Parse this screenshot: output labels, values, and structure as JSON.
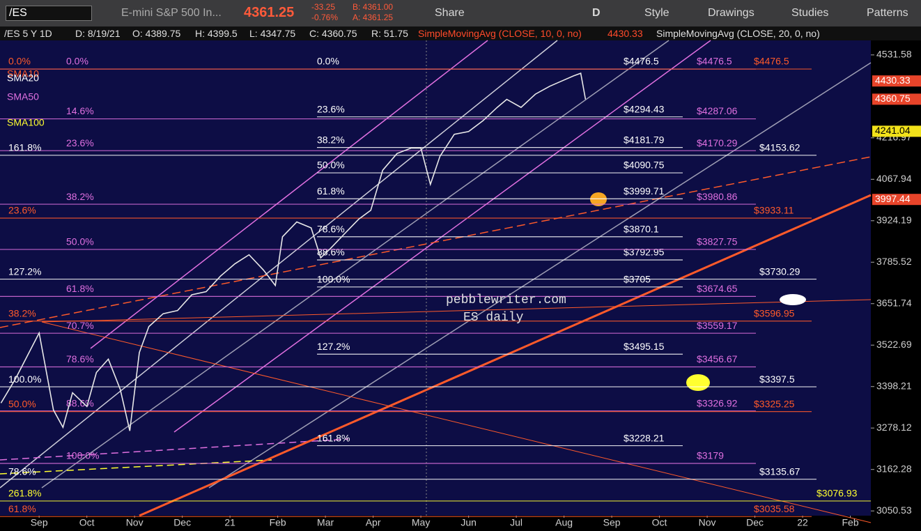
{
  "toolbar": {
    "symbol": "/ES",
    "description": "E-mini S&P 500 In...",
    "last": "4361.25",
    "change": "-33.25",
    "change_pct": "-0.76%",
    "bid": "B: 4361.00",
    "ask": "A: 4361.25",
    "share": "Share",
    "period": "D",
    "style": "Style",
    "drawings": "Drawings",
    "studies": "Studies",
    "patterns": "Patterns"
  },
  "info_bar": {
    "symbol": "/ES 5 Y 1D",
    "date": "D: 8/19/21",
    "open": "O: 4389.75",
    "high": "H: 4399.5",
    "low": "L: 4347.75",
    "close": "C: 4360.75",
    "range": "R: 51.75",
    "study1": "SimpleMovingAvg (CLOSE, 10, 0, no)",
    "study1_value": "4430.33",
    "study2": "SimpleMovingAvg (CLOSE, 20, 0, no)"
  },
  "chart_data": {
    "type": "line",
    "yscale": "log",
    "ylim": [
      3038,
      4589
    ],
    "yticks": [
      4531.58,
      4216.97,
      4067.94,
      3924.19,
      3785.52,
      3651.74,
      3522.69,
      3398.21,
      3278.12,
      3162.28,
      3050.53
    ],
    "xlim": [
      -0.82,
      17.43
    ],
    "xticks": [
      {
        "value": 0,
        "label": "Sep"
      },
      {
        "value": 1,
        "label": "Oct"
      },
      {
        "value": 2,
        "label": "Nov"
      },
      {
        "value": 3,
        "label": "Dec"
      },
      {
        "value": 4,
        "label": "21"
      },
      {
        "value": 5,
        "label": "Feb"
      },
      {
        "value": 6,
        "label": "Mar"
      },
      {
        "value": 7,
        "label": "Apr"
      },
      {
        "value": 8,
        "label": "May"
      },
      {
        "value": 9,
        "label": "Jun"
      },
      {
        "value": 10,
        "label": "Jul"
      },
      {
        "value": 11,
        "label": "Aug"
      },
      {
        "value": 12,
        "label": "Sep"
      },
      {
        "value": 13,
        "label": "Oct"
      },
      {
        "value": 14,
        "label": "Nov"
      },
      {
        "value": 15,
        "label": "Dec"
      },
      {
        "value": 16,
        "label": "22"
      },
      {
        "value": 17,
        "label": "Feb"
      }
    ],
    "series": [
      {
        "color": "#e8e8e8",
        "x": [
          -0.8,
          -0.5,
          0.0,
          0.3,
          0.5,
          0.7,
          1.0,
          1.2,
          1.45,
          1.7,
          1.9,
          2.1,
          2.3,
          2.6,
          2.9,
          3.2,
          3.5,
          3.8,
          4.1,
          4.4,
          4.7,
          4.95,
          5.1,
          5.4,
          5.7,
          5.9,
          6.1,
          6.4,
          6.7,
          6.95,
          7.2,
          7.5,
          7.8,
          8.0,
          8.2,
          8.4,
          8.7,
          9.0,
          9.3,
          9.6,
          9.8,
          10.1,
          10.4,
          10.7,
          10.95,
          11.2,
          11.35,
          11.45
        ],
        "values": [
          3350,
          3420,
          3560,
          3330,
          3280,
          3380,
          3340,
          3440,
          3480,
          3390,
          3270,
          3500,
          3580,
          3620,
          3630,
          3680,
          3690,
          3740,
          3780,
          3810,
          3760,
          3710,
          3870,
          3920,
          3900,
          3800,
          3830,
          3880,
          3930,
          3960,
          4100,
          4160,
          4180,
          4180,
          4050,
          4150,
          4230,
          4240,
          4280,
          4330,
          4360,
          4330,
          4380,
          4410,
          4430,
          4450,
          4460,
          4360.75
        ]
      }
    ],
    "level_groups": [
      {
        "color": "#ffffff",
        "items": [
          {
            "value": 4476.5,
            "label": "$4476.5",
            "fib": "0.0%"
          },
          {
            "value": 4294.43,
            "label": "$4294.43",
            "fib": "23.6%"
          },
          {
            "value": 4181.79,
            "label": "$4181.79",
            "fib": "38.2%"
          },
          {
            "value": 4090.75,
            "label": "$4090.75",
            "fib": "50.0%"
          },
          {
            "value": 3999.71,
            "label": "$3999.71",
            "fib": "61.8%"
          },
          {
            "value": 3870.1,
            "label": "$3870.1",
            "fib": "78.6%"
          },
          {
            "value": 3792.95,
            "label": "$3792.95",
            "fib": "88.6%"
          },
          {
            "value": 3705,
            "label": "$3705",
            "fib": "100.0%"
          },
          {
            "value": 3495.15,
            "label": "$3495.15",
            "fib": "127.2%"
          },
          {
            "value": 3228.21,
            "label": "$3228.21",
            "fib": "161.8%"
          }
        ]
      },
      {
        "color": "#e070e0",
        "items": [
          {
            "value": 4476.5,
            "label": "$4476.5",
            "fib": "0.0%"
          },
          {
            "value": 4287.06,
            "label": "$4287.06",
            "fib": "14.6%"
          },
          {
            "value": 4170.29,
            "label": "$4170.29",
            "fib": "23.6%"
          },
          {
            "value": 3980.86,
            "label": "$3980.86",
            "fib": "38.2%"
          },
          {
            "value": 3827.75,
            "label": "$3827.75",
            "fib": "50.0%"
          },
          {
            "value": 3674.65,
            "label": "$3674.65",
            "fib": "61.8%"
          },
          {
            "value": 3559.17,
            "label": "$3559.17",
            "fib": "70.7%"
          },
          {
            "value": 3456.67,
            "label": "$3456.67",
            "fib": "78.6%"
          },
          {
            "value": 3326.92,
            "label": "$3326.92",
            "fib": "88.6%"
          },
          {
            "value": 3179,
            "label": "$3179",
            "fib": "100.0%"
          }
        ]
      },
      {
        "color": "#ff5a2a",
        "items": [
          {
            "value": 4476.5,
            "label": "$4476.5",
            "fib": "0.0%"
          },
          {
            "value": 3933.11,
            "label": "$3933.11",
            "fib": "23.6%"
          },
          {
            "value": 3596.95,
            "label": "$3596.95",
            "fib": "38.2%"
          },
          {
            "value": 3325.25,
            "label": "$3325.25",
            "fib": "50.0%"
          },
          {
            "value": 3035.58,
            "label": "$3035.58",
            "fib": "61.8%"
          }
        ]
      },
      {
        "color": "#ffffff",
        "items": [
          {
            "value": 4153.62,
            "label": "$4153.62",
            "fib": "161.8%"
          },
          {
            "value": 3730.29,
            "label": "$3730.29",
            "fib": "127.2%"
          },
          {
            "value": 3397.5,
            "label": "$3397.5",
            "fib": "100.0%"
          },
          {
            "value": 3135.67,
            "label": "$3135.67",
            "fib": "78.6%"
          }
        ]
      },
      {
        "color": "#ffff30",
        "items": [
          {
            "value": 3076.93,
            "label": "$3076.93",
            "fib": "261.8%"
          }
        ]
      }
    ],
    "price_badges": [
      {
        "value": 4430.33,
        "color": "#e8442a"
      },
      {
        "value": 4360.75,
        "color": "#e8442a"
      },
      {
        "value": 4241.04,
        "color": "#f2e21a"
      },
      {
        "value": 3997.44,
        "color": "#e8442a"
      }
    ],
    "study_labels": [
      {
        "label": "SMA10",
        "color": "#ff5a2a"
      },
      {
        "label": "SMA20",
        "color": "#ffffff"
      },
      {
        "label": "SMA50",
        "color": "#e070e0"
      },
      {
        "label": "SMA100",
        "color": "#ffff30"
      }
    ],
    "annotations": [
      "pebblewriter.com",
      "ES daily"
    ]
  }
}
